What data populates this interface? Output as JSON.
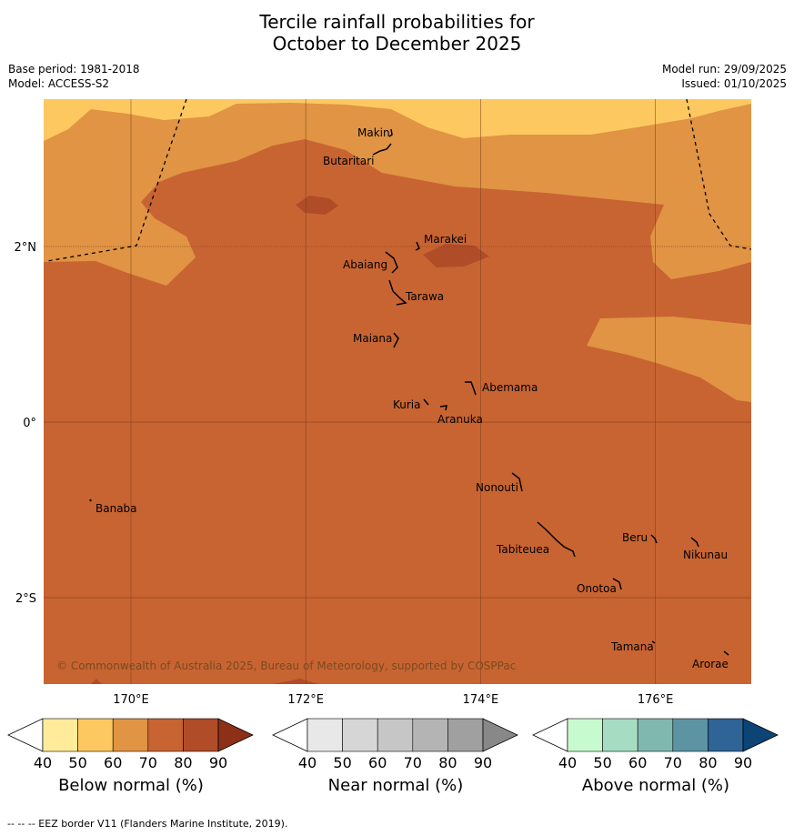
{
  "title_line1": "Tercile rainfall probabilities for",
  "title_line2": "October to December 2025",
  "base_period": "Base period: 1981-2018",
  "model": "Model: ACCESS-S2",
  "model_run": "Model run: 29/09/2025",
  "issued": "Issued: 01/10/2025",
  "copyright": "© Commonwealth of Australia 2025, Bureau of Meteorology, supported by COSPPac",
  "footnote": "--  --  -- EEZ border V11 (Flanders Marine Institute, 2019).",
  "lon_ticks": [
    {
      "lon": 170,
      "label": "170°E"
    },
    {
      "lon": 172,
      "label": "172°E"
    },
    {
      "lon": 174,
      "label": "174°E"
    },
    {
      "lon": 176,
      "label": "176°E"
    }
  ],
  "lat_ticks": [
    {
      "lat": 2,
      "label": "2°N"
    },
    {
      "lat": 0,
      "label": "0°"
    },
    {
      "lat": -2,
      "label": "2°S"
    }
  ],
  "islands": [
    {
      "name": "Makin",
      "lon": 172.95,
      "lat": 3.35
    },
    {
      "name": "Butaritari",
      "lon": 172.8,
      "lat": 3.1
    },
    {
      "name": "Marakei",
      "lon": 173.3,
      "lat": 2.0
    },
    {
      "name": "Abaiang",
      "lon": 172.95,
      "lat": 1.8
    },
    {
      "name": "Tarawa",
      "lon": 173.0,
      "lat": 1.45
    },
    {
      "name": "Maiana",
      "lon": 173.0,
      "lat": 0.95
    },
    {
      "name": "Abemama",
      "lon": 173.9,
      "lat": 0.4
    },
    {
      "name": "Kuria",
      "lon": 173.4,
      "lat": 0.22
    },
    {
      "name": "Aranuka",
      "lon": 173.6,
      "lat": 0.15
    },
    {
      "name": "Banaba",
      "lon": 169.55,
      "lat": -0.87
    },
    {
      "name": "Nonouti",
      "lon": 174.4,
      "lat": -0.65
    },
    {
      "name": "Tabiteuea",
      "lon": 174.9,
      "lat": -1.35
    },
    {
      "name": "Beru",
      "lon": 176.0,
      "lat": -1.32
    },
    {
      "name": "Nikunau",
      "lon": 176.45,
      "lat": -1.35
    },
    {
      "name": "Onotoa",
      "lon": 175.55,
      "lat": -1.85
    },
    {
      "name": "Tamana",
      "lon": 176.0,
      "lat": -2.5
    },
    {
      "name": "Arorae",
      "lon": 176.8,
      "lat": -2.65
    }
  ],
  "colorbars": [
    {
      "title": "Below normal (%)",
      "colors": [
        "#ffffff",
        "#ffeb99",
        "#fdc860",
        "#e09444",
        "#c86432",
        "#b04c28",
        "#8c3018"
      ]
    },
    {
      "title": "Near normal (%)",
      "colors": [
        "#ffffff",
        "#e8e8e8",
        "#d6d6d6",
        "#c6c6c6",
        "#b4b4b4",
        "#a0a0a0",
        "#888888"
      ]
    },
    {
      "title": "Above normal (%)",
      "colors": [
        "#ffffff",
        "#c8fad0",
        "#a6dcc2",
        "#80b8b0",
        "#5c94a4",
        "#2e6496",
        "#0c4476"
      ]
    }
  ],
  "colorbar_ticks": [
    "40",
    "50",
    "60",
    "70",
    "80",
    "90"
  ],
  "fill_colors": {
    "below_60_70": "#e09444",
    "below_50_60": "#fdc860",
    "below_70_80": "#c86432",
    "below_80_90": "#b04c28"
  }
}
